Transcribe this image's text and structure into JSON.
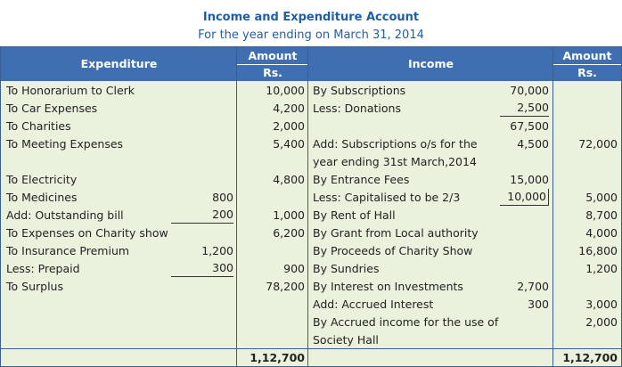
{
  "header": {
    "title": "Income and Expenditure Account",
    "subtitle": "For the year ending on March 31, 2014"
  },
  "table": {
    "columns": {
      "expenditure": "Expenditure",
      "income": "Income",
      "amount_left": [
        "Amount",
        "Rs."
      ],
      "amount_right": [
        "Amount",
        "Rs."
      ]
    },
    "rows": [
      {
        "left": "To Honorarium to Clerk",
        "left_amount": "10,000",
        "right": "By Subscriptions",
        "right_inner": "70,000"
      },
      {
        "left": "To Car Expenses",
        "left_amount": "4,200",
        "right": "Less: Donations",
        "right_inner": "2,500",
        "right_inner_underline": true
      },
      {
        "left": "To Charities",
        "left_amount": "2,000",
        "right_inner": "67,500"
      },
      {
        "left": "To Meeting Expenses",
        "left_amount": "5,400",
        "right": "Add: Subscriptions o/s for the",
        "right_inner": "4,500",
        "right_amount": "72,000"
      },
      {
        "right": "year ending 31st March,2014"
      },
      {
        "left": "To Electricity",
        "left_amount": "4,800",
        "right": "By Entrance Fees",
        "right_inner": "15,000"
      },
      {
        "left": "To Medicines",
        "left_inner": "800",
        "right": "Less: Capitalised to be 2/3",
        "right_inner": "10,000",
        "right_inner_underline": true,
        "right_amount": "5,000"
      },
      {
        "left": "Add: Outstanding bill",
        "left_inner": "200",
        "left_inner_underline": true,
        "left_amount": "1,000",
        "right": "By Rent of Hall",
        "right_amount": "8,700"
      },
      {
        "left": "To Expenses on Charity show",
        "left_amount": "6,200",
        "right": "By Grant from Local authority",
        "right_amount": "4,000"
      },
      {
        "left": "To Insurance Premium",
        "left_inner": "1,200",
        "right": "By Proceeds of Charity Show",
        "right_amount": "16,800"
      },
      {
        "left": "Less: Prepaid",
        "left_inner": "300",
        "left_inner_underline": true,
        "left_amount": "900",
        "right": "By Sundries",
        "right_amount": "1,200"
      },
      {
        "left": "To Surplus",
        "left_amount": "78,200",
        "right": "By Interest on Investments",
        "right_inner": "2,700"
      },
      {
        "right": "Add: Accrued Interest",
        "right_inner": "300",
        "right_amount": "3,000"
      },
      {
        "right": "By Accrued income for the use of",
        "right_amount": "2,000"
      },
      {
        "right": "Society Hall"
      }
    ],
    "totals": {
      "left": "1,12,700",
      "right": "1,12,700"
    }
  }
}
